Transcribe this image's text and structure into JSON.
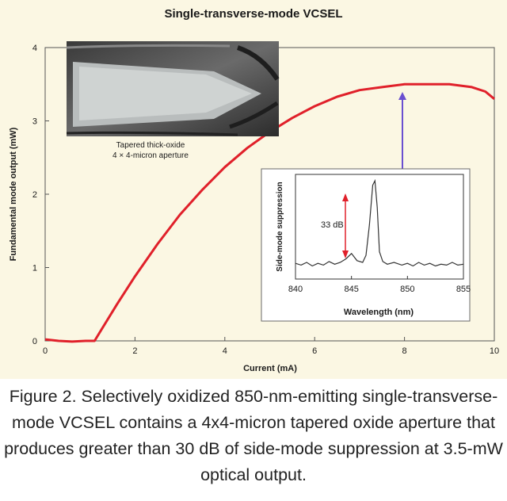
{
  "chart_data": [
    {
      "type": "line",
      "title": "Single-transverse-mode VCSEL",
      "xlabel": "Current (mA)",
      "ylabel": "Fundamental mode output (mW)",
      "xlim": [
        0,
        10
      ],
      "ylim": [
        0,
        4
      ],
      "xticks": [
        "0",
        "2",
        "4",
        "6",
        "8",
        "10"
      ],
      "yticks": [
        "0",
        "1",
        "2",
        "3",
        "4"
      ],
      "series": [
        {
          "name": "",
          "color": "#e0202a",
          "x": [
            0,
            0.3,
            0.6,
            0.9,
            1.1,
            1.3,
            1.6,
            2.0,
            2.5,
            3.0,
            3.5,
            4.0,
            4.5,
            5.0,
            5.5,
            6.0,
            6.5,
            7.0,
            7.5,
            8.0,
            8.5,
            9.0,
            9.5,
            9.8,
            10.0
          ],
          "y": [
            0.02,
            0.0,
            -0.01,
            0.0,
            0.0,
            0.2,
            0.5,
            0.88,
            1.32,
            1.72,
            2.06,
            2.37,
            2.63,
            2.85,
            3.04,
            3.2,
            3.33,
            3.42,
            3.46,
            3.5,
            3.5,
            3.5,
            3.46,
            3.4,
            3.3
          ]
        }
      ],
      "annotation_arrow_color": "#6a4fd0",
      "grid": false
    },
    {
      "type": "line",
      "role": "inset",
      "xlabel": "Wavelength (nm)",
      "ylabel": "Side-mode suppression",
      "xlim": [
        840,
        855
      ],
      "xticks": [
        "840",
        "845",
        "850",
        "855"
      ],
      "annotation": "33 dB",
      "annotation_color": "#e0202a",
      "series": [
        {
          "name": "",
          "color": "#333333",
          "x": [
            840,
            840.5,
            841,
            841.5,
            842,
            842.5,
            843,
            843.5,
            844,
            844.5,
            845,
            845.5,
            846,
            846.3,
            846.6,
            846.9,
            847.1,
            847.3,
            847.5,
            847.8,
            848.2,
            848.8,
            849.5,
            850,
            850.5,
            851,
            851.5,
            852,
            852.5,
            853,
            853.5,
            854,
            854.5,
            855
          ],
          "y": [
            0.07,
            0.05,
            0.08,
            0.04,
            0.07,
            0.05,
            0.09,
            0.06,
            0.08,
            0.12,
            0.18,
            0.1,
            0.08,
            0.16,
            0.5,
            0.95,
            1.0,
            0.7,
            0.2,
            0.09,
            0.06,
            0.08,
            0.05,
            0.07,
            0.04,
            0.08,
            0.05,
            0.07,
            0.04,
            0.06,
            0.05,
            0.08,
            0.05,
            0.06
          ]
        }
      ]
    }
  ],
  "image": {
    "caption_lines": [
      "Tapered thick-oxide",
      "4 × 4-micron aperture"
    ]
  },
  "figure_caption": "Figure 2. Selectively oxidized 850-nm-emitting single-transverse-mode VCSEL contains a 4x4-micron tapered oxide aperture that produces greater than 30 dB of side-mode suppression at 3.5-mW optical output."
}
